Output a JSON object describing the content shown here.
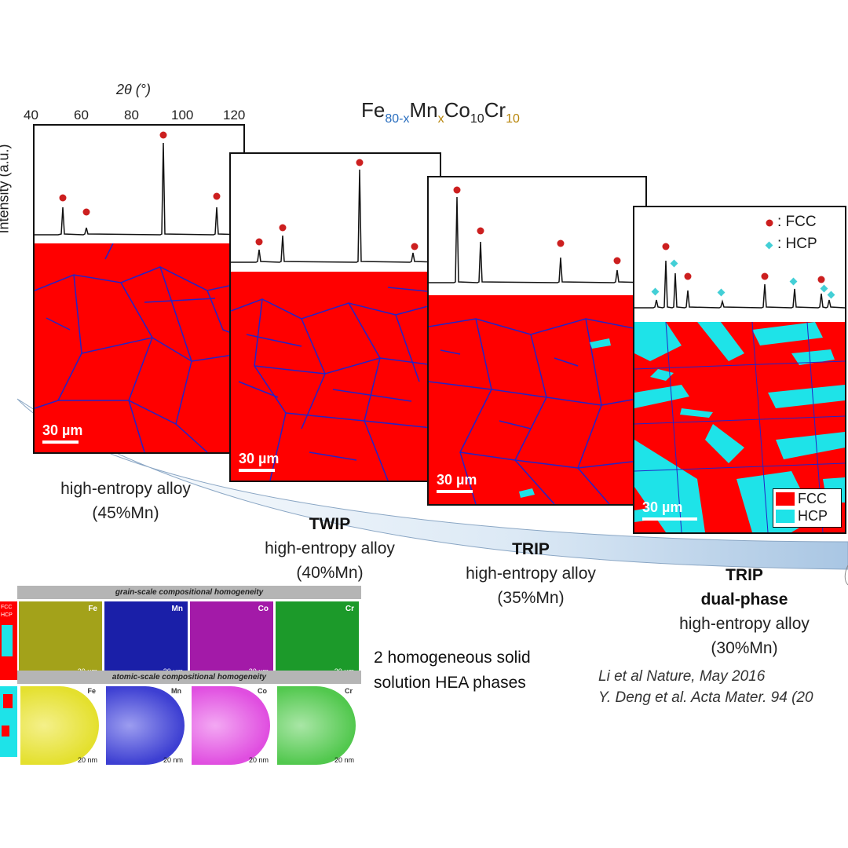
{
  "title": {
    "base1": "Fe",
    "sub1": "80-x",
    "base2": "Mn",
    "sub2": "x",
    "base3": "Co",
    "sub3": "10",
    "base4": "Cr",
    "sub4": "10"
  },
  "axis": {
    "top_label": "2θ (°)",
    "ticks": [
      "40",
      "60",
      "80",
      "100",
      "120"
    ],
    "y_label": "Intensity (a.u.)"
  },
  "legend": {
    "fcc": ": FCC",
    "hcp": ": HCP",
    "map_fcc": "FCC",
    "map_hcp": "HCP"
  },
  "panels": [
    {
      "scale": "30 µm",
      "caption_bold": "",
      "caption_bold2": "",
      "caption_line1": "high-entropy alloy",
      "caption_line2": "(45%Mn)"
    },
    {
      "scale": "30 µm",
      "caption_bold": "TWIP",
      "caption_bold2": "",
      "caption_line1": "high-entropy alloy",
      "caption_line2": "(40%Mn)"
    },
    {
      "scale": "30 µm",
      "caption_bold": "TRIP",
      "caption_bold2": "",
      "caption_line1": "high-entropy alloy",
      "caption_line2": "(35%Mn)"
    },
    {
      "scale": "30 µm",
      "caption_bold": "TRIP",
      "caption_bold2": "dual-phase",
      "caption_line1": "high-entropy alloy",
      "caption_line2": "(30%Mn)"
    }
  ],
  "inset": {
    "grain_header": "grain-scale compositional homogeneity",
    "atomic_header": "atomic-scale compositional homogeneity",
    "grain_tiles": [
      {
        "element": "Fe",
        "scale": "20 µm",
        "color": "#a3a21a"
      },
      {
        "element": "Mn",
        "scale": "20 µm",
        "color": "#1a1fa8"
      },
      {
        "element": "Co",
        "scale": "20 µm",
        "color": "#a31aa8"
      },
      {
        "element": "Cr",
        "scale": "20 µm",
        "color": "#1c9a2a"
      }
    ],
    "atomic_tiles": [
      {
        "element": "Fe",
        "scale": "20 nm",
        "color": "#e4e02e"
      },
      {
        "element": "Mn",
        "scale": "20 nm",
        "color": "#3d3fd2"
      },
      {
        "element": "Co",
        "scale": "20 nm",
        "color": "#e04ee0"
      },
      {
        "element": "Cr",
        "scale": "20 nm",
        "color": "#52c84e"
      }
    ],
    "mini_labels": [
      "FCC",
      "HCP"
    ]
  },
  "phases_text": {
    "line1": "2 homogeneous solid",
    "line2": "solution HEA phases"
  },
  "references": {
    "line1": "Li et al Nature, May 2016",
    "line2": "Y. Deng et al. Acta Mater. 94 (20"
  },
  "colors": {
    "fcc": "#ff0000",
    "hcp": "#1ee3e8",
    "grain_boundary": "#2323c8",
    "peak_marker": "#cc1f1f",
    "hcp_marker": "#43cfd6"
  }
}
